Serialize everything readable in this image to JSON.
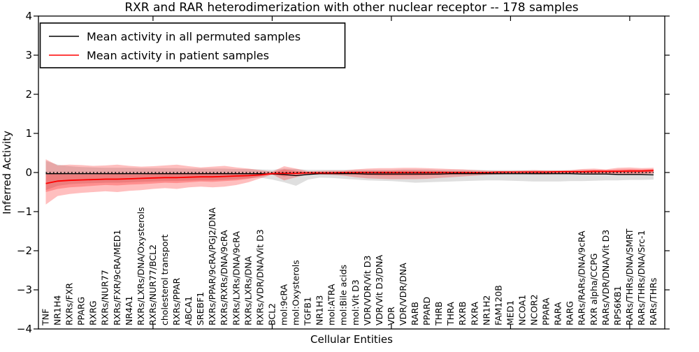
{
  "title": "RXR and RAR heterodimerization with other nuclear receptor -- 178 samples",
  "axes": {
    "x_label": "Cellular Entities",
    "y_label": "Inferred Activity",
    "y_tick_labels": [
      "4",
      "3",
      "2",
      "1",
      "0",
      "−1",
      "−2",
      "−3",
      "−4"
    ],
    "y_tick_values": [
      4,
      3,
      2,
      1,
      0,
      -1,
      -2,
      -3,
      -4
    ],
    "x_major_tick_indices": [
      9,
      19,
      29,
      39,
      49
    ]
  },
  "legend": {
    "items": [
      {
        "label": "Mean activity in all permuted samples",
        "color": "#000000"
      },
      {
        "label": "Mean activity in patient samples",
        "color": "#ff0000"
      }
    ]
  },
  "colors": {
    "permuted_line": "#000000",
    "patient_line": "#ff0000",
    "permuted_band": "#808080",
    "patient_band": "#ff0000",
    "frame": "#000000",
    "background": "#ffffff"
  },
  "chart_data": {
    "type": "line",
    "title": "RXR and RAR heterodimerization with other nuclear receptor -- 178 samples",
    "xlabel": "Cellular Entities",
    "ylabel": "Inferred Activity",
    "ylim": [
      -4,
      4
    ],
    "grid": false,
    "legend_position": "upper left",
    "zero_line_dashed": true,
    "categories": [
      "TNF",
      "NR1H4",
      "RXRs/FXR",
      "PPARG",
      "RXRG",
      "RXRs/NUR77",
      "RXRs/FXR/9cRA/MED1",
      "NR4A1",
      "RXRs/LXRs/DNA/Oxysterols",
      "RXRs/NUR77/BCL2",
      "cholesterol transport",
      "RXRs/PPAR",
      "ABCA1",
      "SREBF1",
      "RXRs/PPAR/9cRA/PGJ2/DNA",
      "RXRs/RXRs/DNA/9cRA",
      "RXRs/LXRs/DNA/9cRA",
      "RXRs/LXRs/DNA",
      "RXRs/VDR/DNA/Vit D3",
      "BCL2",
      "mol:9cRA",
      "mol:Oxysterols",
      "TGFB1",
      "NR1H3",
      "mol:ATRA",
      "mol:Bile acids",
      "mol:Vit D3",
      "VDR/VDR/Vit D3",
      "VDR/Vit D3/DNA",
      "VDR",
      "VDR/VDR/DNA",
      "RARB",
      "PPARD",
      "THRB",
      "THRA",
      "RXRB",
      "RXRA",
      "NR1H2",
      "FAM120B",
      "MED1",
      "NCOA1",
      "NCOR2",
      "PPARA",
      "RARA",
      "RARG",
      "RARs/RARs/DNA/9cRA",
      "RXR alpha/CCPG",
      "RARs/VDR/DNA/Vit D3",
      "RPS6KB1",
      "RARs/THRs/DNA/SMRT",
      "RARs/THRs/DNA/Src-1",
      "RARs/THRs"
    ],
    "series": [
      {
        "name": "Mean activity in all permuted samples",
        "color": "#000000",
        "values": [
          -0.03,
          -0.03,
          -0.03,
          -0.03,
          -0.03,
          -0.03,
          -0.03,
          -0.03,
          -0.03,
          -0.03,
          -0.03,
          -0.03,
          -0.03,
          -0.03,
          -0.03,
          -0.03,
          -0.03,
          -0.03,
          -0.03,
          -0.04,
          -0.05,
          -0.08,
          -0.05,
          -0.03,
          -0.03,
          -0.03,
          -0.03,
          -0.04,
          -0.04,
          -0.04,
          -0.04,
          -0.04,
          -0.04,
          -0.04,
          -0.03,
          -0.03,
          -0.03,
          -0.03,
          -0.03,
          -0.03,
          -0.03,
          -0.03,
          -0.03,
          -0.03,
          -0.03,
          -0.04,
          -0.04,
          -0.04,
          -0.05,
          -0.05,
          -0.05,
          -0.06
        ]
      },
      {
        "name": "Mean activity in patient samples",
        "color": "#ff0000",
        "values": [
          -0.28,
          -0.22,
          -0.2,
          -0.19,
          -0.18,
          -0.17,
          -0.17,
          -0.16,
          -0.15,
          -0.14,
          -0.13,
          -0.13,
          -0.12,
          -0.11,
          -0.11,
          -0.1,
          -0.09,
          -0.08,
          -0.06,
          -0.03,
          -0.02,
          -0.02,
          -0.01,
          -0.01,
          -0.01,
          0.0,
          0.0,
          0.0,
          0.0,
          0.0,
          0.0,
          0.0,
          0.0,
          0.0,
          0.0,
          0.0,
          0.0,
          0.0,
          0.01,
          0.01,
          0.01,
          0.01,
          0.01,
          0.02,
          0.02,
          0.02,
          0.03,
          0.03,
          0.03,
          0.04,
          0.04,
          0.05
        ]
      }
    ],
    "bands": [
      {
        "name": "permuted-samples-spread",
        "color": "#808080",
        "opacity": 0.25,
        "upper": [
          0.3,
          0.2,
          0.16,
          0.14,
          0.13,
          0.12,
          0.12,
          0.12,
          0.11,
          0.11,
          0.11,
          0.11,
          0.1,
          0.1,
          0.1,
          0.1,
          0.09,
          0.09,
          0.08,
          0.07,
          0.1,
          0.09,
          0.07,
          0.07,
          0.07,
          0.07,
          0.07,
          0.07,
          0.07,
          0.07,
          0.08,
          0.08,
          0.08,
          0.07,
          0.07,
          0.07,
          0.07,
          0.06,
          0.06,
          0.06,
          0.06,
          0.06,
          0.06,
          0.06,
          0.06,
          0.06,
          0.06,
          0.05,
          0.05,
          0.05,
          0.05,
          0.05
        ],
        "lower": [
          -0.45,
          -0.34,
          -0.3,
          -0.28,
          -0.27,
          -0.26,
          -0.26,
          -0.25,
          -0.24,
          -0.23,
          -0.22,
          -0.22,
          -0.21,
          -0.2,
          -0.2,
          -0.19,
          -0.17,
          -0.15,
          -0.13,
          -0.18,
          -0.25,
          -0.34,
          -0.18,
          -0.13,
          -0.14,
          -0.16,
          -0.18,
          -0.2,
          -0.21,
          -0.22,
          -0.24,
          -0.26,
          -0.25,
          -0.24,
          -0.23,
          -0.22,
          -0.21,
          -0.2,
          -0.2,
          -0.21,
          -0.22,
          -0.23,
          -0.23,
          -0.23,
          -0.22,
          -0.22,
          -0.21,
          -0.2,
          -0.2,
          -0.19,
          -0.19,
          -0.18
        ]
      },
      {
        "name": "patient-samples-outer-spread",
        "color": "#ff0000",
        "opacity": 0.25,
        "upper": [
          0.34,
          0.18,
          0.2,
          0.19,
          0.17,
          0.18,
          0.2,
          0.17,
          0.15,
          0.16,
          0.18,
          0.2,
          0.16,
          0.13,
          0.15,
          0.17,
          0.13,
          0.1,
          0.06,
          0.02,
          0.16,
          0.1,
          0.03,
          0.04,
          0.05,
          0.05,
          0.08,
          0.1,
          0.11,
          0.11,
          0.12,
          0.12,
          0.11,
          0.1,
          0.09,
          0.08,
          0.06,
          0.05,
          0.04,
          0.04,
          0.05,
          0.06,
          0.05,
          0.05,
          0.06,
          0.09,
          0.1,
          0.08,
          0.12,
          0.13,
          0.11,
          0.12
        ],
        "lower": [
          -0.82,
          -0.6,
          -0.55,
          -0.52,
          -0.5,
          -0.48,
          -0.5,
          -0.47,
          -0.45,
          -0.42,
          -0.4,
          -0.42,
          -0.38,
          -0.36,
          -0.38,
          -0.36,
          -0.32,
          -0.25,
          -0.15,
          -0.05,
          -0.2,
          -0.12,
          -0.04,
          -0.05,
          -0.06,
          -0.08,
          -0.12,
          -0.15,
          -0.16,
          -0.17,
          -0.17,
          -0.17,
          -0.16,
          -0.14,
          -0.12,
          -0.1,
          -0.08,
          -0.06,
          -0.05,
          -0.04,
          -0.04,
          -0.05,
          -0.05,
          -0.04,
          -0.04,
          -0.04,
          -0.05,
          -0.04,
          -0.04,
          -0.05,
          -0.04,
          -0.03
        ]
      },
      {
        "name": "patient-samples-inner-spread",
        "color": "#ff0000",
        "opacity": 0.25,
        "upper": [
          -0.04,
          -0.04,
          -0.05,
          -0.05,
          -0.05,
          -0.04,
          -0.04,
          -0.05,
          -0.05,
          -0.04,
          -0.04,
          -0.04,
          -0.04,
          -0.03,
          -0.03,
          -0.03,
          -0.02,
          -0.02,
          -0.01,
          0.0,
          0.08,
          0.04,
          0.01,
          0.01,
          0.02,
          0.02,
          0.03,
          0.04,
          0.04,
          0.04,
          0.05,
          0.05,
          0.04,
          0.04,
          0.03,
          0.03,
          0.02,
          0.02,
          0.02,
          0.02,
          0.03,
          0.04,
          0.04,
          0.04,
          0.05,
          0.06,
          0.07,
          0.06,
          0.08,
          0.09,
          0.08,
          0.09
        ],
        "lower": [
          -0.5,
          -0.42,
          -0.38,
          -0.36,
          -0.34,
          -0.32,
          -0.33,
          -0.31,
          -0.3,
          -0.28,
          -0.26,
          -0.27,
          -0.25,
          -0.23,
          -0.24,
          -0.22,
          -0.2,
          -0.16,
          -0.1,
          -0.03,
          -0.1,
          -0.06,
          -0.02,
          -0.02,
          -0.02,
          -0.03,
          -0.05,
          -0.07,
          -0.08,
          -0.08,
          -0.08,
          -0.08,
          -0.07,
          -0.06,
          -0.05,
          -0.04,
          -0.03,
          -0.02,
          -0.02,
          -0.01,
          -0.01,
          -0.02,
          -0.02,
          -0.01,
          -0.01,
          -0.01,
          -0.02,
          -0.01,
          -0.01,
          -0.02,
          -0.01,
          0.0
        ]
      }
    ]
  }
}
